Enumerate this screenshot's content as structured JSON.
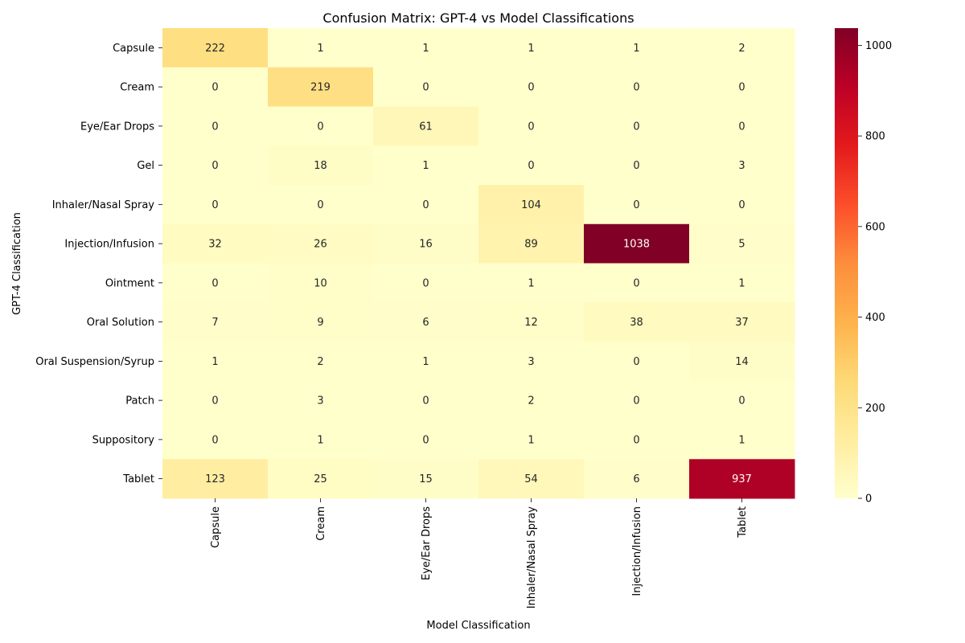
{
  "chart_data": {
    "type": "heatmap",
    "title": "Confusion Matrix: GPT-4 vs Model Classifications",
    "xlabel": "Model Classification",
    "ylabel": "GPT-4 Classification",
    "x_categories": [
      "Capsule",
      "Cream",
      "Eye/Ear Drops",
      "Inhaler/Nasal Spray",
      "Injection/Infusion",
      "Tablet"
    ],
    "y_categories": [
      "Capsule",
      "Cream",
      "Eye/Ear Drops",
      "Gel",
      "Inhaler/Nasal Spray",
      "Injection/Infusion",
      "Ointment",
      "Oral Solution",
      "Oral Suspension/Syrup",
      "Patch",
      "Suppository",
      "Tablet"
    ],
    "values": [
      [
        222,
        1,
        1,
        1,
        1,
        2
      ],
      [
        0,
        219,
        0,
        0,
        0,
        0
      ],
      [
        0,
        0,
        61,
        0,
        0,
        0
      ],
      [
        0,
        18,
        1,
        0,
        0,
        3
      ],
      [
        0,
        0,
        0,
        104,
        0,
        0
      ],
      [
        32,
        26,
        16,
        89,
        1038,
        5
      ],
      [
        0,
        10,
        0,
        1,
        0,
        1
      ],
      [
        7,
        9,
        6,
        12,
        38,
        37
      ],
      [
        1,
        2,
        1,
        3,
        0,
        14
      ],
      [
        0,
        3,
        0,
        2,
        0,
        0
      ],
      [
        0,
        1,
        0,
        1,
        0,
        1
      ],
      [
        123,
        25,
        15,
        54,
        6,
        937
      ]
    ],
    "colormap": "YlOrRd",
    "vmin": 0,
    "vmax": 1038,
    "colorbar_ticks": [
      0,
      200,
      400,
      600,
      800,
      1000
    ]
  }
}
